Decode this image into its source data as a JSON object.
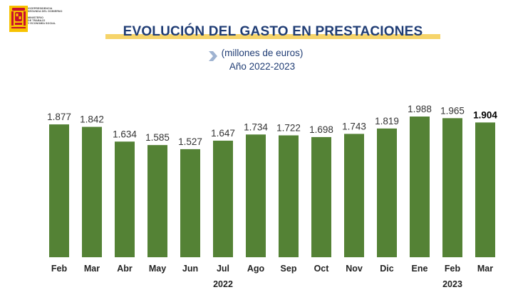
{
  "logo": {
    "lines_top": [
      "VICEPRESIDENCIA",
      "SEGUNDA DEL GOBIERNO"
    ],
    "lines_bottom": [
      "MINISTERIO",
      "DE TRABAJO",
      "Y ECONOMÍA SOCIAL"
    ]
  },
  "header": {
    "title": "EVOLUCIÓN DEL GASTO EN PRESTACIONES",
    "subtitle1": "(millones de euros)",
    "subtitle2": "Año 2022-2023"
  },
  "colors": {
    "bar": "#548235",
    "title": "#1f3c74",
    "title_underline": "#f6d46a",
    "chevron": "#9fb3d1"
  },
  "chart_data": {
    "type": "bar",
    "title": "EVOLUCIÓN DEL GASTO EN PRESTACIONES",
    "subtitle": "(millones de euros) Año 2022-2023",
    "categories": [
      "Feb",
      "Mar",
      "Abr",
      "May",
      "Jun",
      "Jul",
      "Ago",
      "Sep",
      "Oct",
      "Nov",
      "Dic",
      "Ene",
      "Feb",
      "Mar"
    ],
    "values": [
      1877,
      1842,
      1634,
      1585,
      1527,
      1647,
      1734,
      1722,
      1698,
      1743,
      1819,
      1988,
      1965,
      1904
    ],
    "value_labels": [
      "1.877",
      "1.842",
      "1.634",
      "1.585",
      "1.527",
      "1.647",
      "1.734",
      "1.722",
      "1.698",
      "1.743",
      "1.819",
      "1.988",
      "1.965",
      "1.904"
    ],
    "highlighted_label_index": 13,
    "groups": [
      {
        "label": "2022",
        "start": 0,
        "end": 10
      },
      {
        "label": "2023",
        "start": 11,
        "end": 13
      }
    ],
    "ylim": [
      0,
      1988
    ],
    "grid": false,
    "legend": "none"
  }
}
